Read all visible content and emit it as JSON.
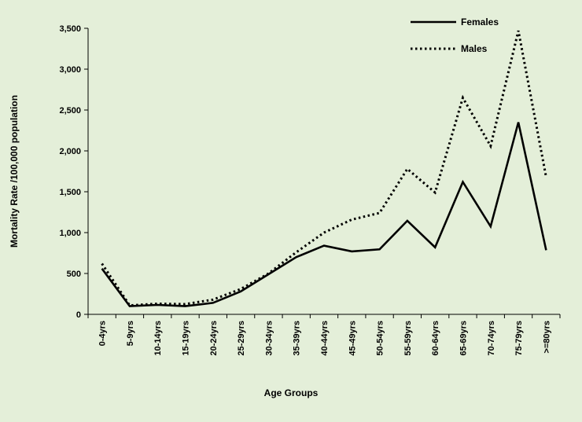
{
  "chart_data": {
    "type": "line",
    "xlabel": "Age Groups",
    "ylabel": "Mortality  Rate /100,000 population",
    "ylim": [
      0,
      3500
    ],
    "yticks": [
      "0",
      "500",
      "1,000",
      "1,500",
      "2,000",
      "2,500",
      "3,000",
      "3,500"
    ],
    "ytick_values": [
      0,
      500,
      1000,
      1500,
      2000,
      2500,
      3000,
      3500
    ],
    "categories": [
      "0-4yrs",
      "5-9yrs",
      "10-14yrs",
      "15-19yrs",
      "20-24yrs",
      "25-29yrs",
      "30-34yrs",
      "35-39yrs",
      "40-44yrs",
      "45-49yrs",
      "50-54yrs",
      "55-59yrs",
      "60-64yrs",
      "65-69yrs",
      "70-74yrs",
      "75-79yrs",
      ">=80yrs"
    ],
    "series": [
      {
        "name": "Females",
        "style": "solid",
        "values": [
          560,
          100,
          115,
          100,
          140,
          280,
          490,
          700,
          840,
          770,
          795,
          1145,
          820,
          1620,
          1075,
          2350,
          785
        ]
      },
      {
        "name": "Males",
        "style": "dotted",
        "values": [
          620,
          110,
          130,
          125,
          180,
          310,
          500,
          760,
          1000,
          1160,
          1240,
          1780,
          1490,
          2650,
          2060,
          3470,
          1680
        ]
      }
    ],
    "legend_position": "top-right",
    "grid": false,
    "background": "#e4efd9",
    "line_color": "#000000"
  }
}
